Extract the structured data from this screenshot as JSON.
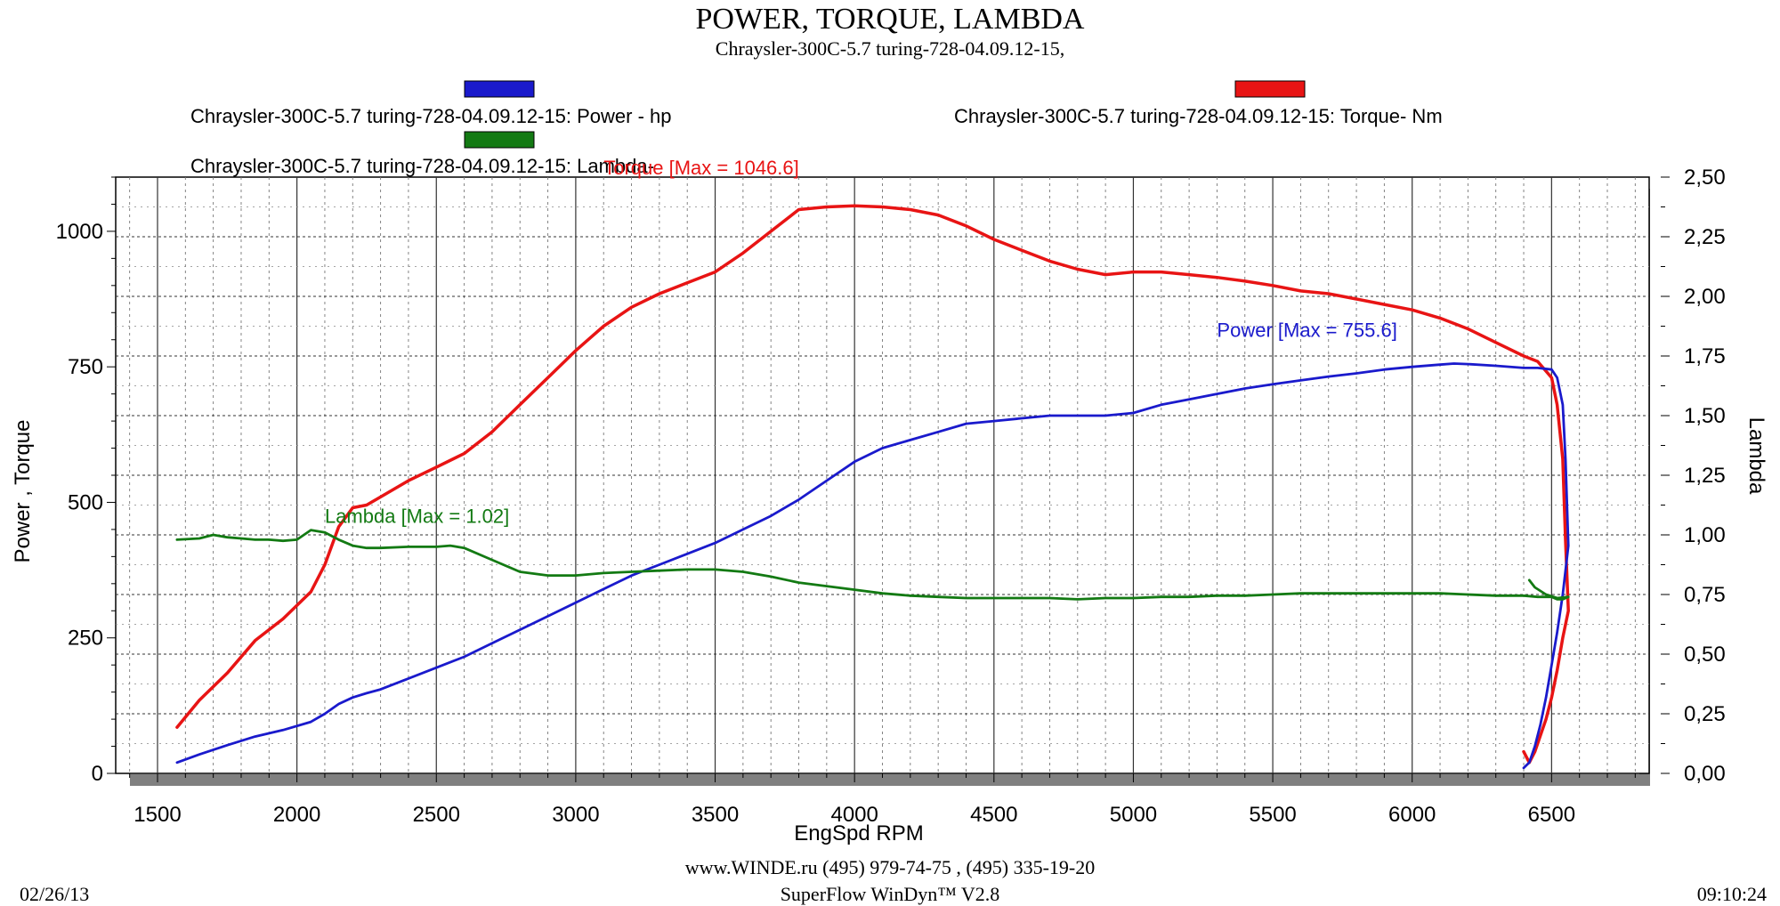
{
  "header": {
    "title": "POWER, TORQUE, LAMBDA",
    "subtitle": "Chraysler-300C-5.7 turing-728-04.09.12-15,"
  },
  "legend": {
    "power": "Chraysler-300C-5.7 turing-728-04.09.12-15: Power -  hp",
    "torque": "Chraysler-300C-5.7 turing-728-04.09.12-15: Torque-  Nm",
    "lambda": "Chraysler-300C-5.7 turing-728-04.09.12-15: Lambda-"
  },
  "footer": {
    "website": "www.WINDE.ru  (495) 979-74-75 , (495) 335-19-20",
    "software": "SuperFlow WinDyn™ V2.8",
    "date": "02/26/13",
    "time": "09:10:24"
  },
  "colors": {
    "power": "#1a1acc",
    "torque": "#e81414",
    "lambda": "#137a13",
    "shadow": "#808080"
  },
  "chart_data": {
    "type": "line",
    "title": "POWER, TORQUE, LAMBDA",
    "xlabel": "EngSpd  RPM",
    "ylabel": "Power , Torque",
    "y2label": "Lambda",
    "xlim": [
      1350,
      6850
    ],
    "ylim": [
      0,
      1100
    ],
    "y2lim": [
      0,
      2.5
    ],
    "x_ticks": [
      1500,
      2000,
      2500,
      3000,
      3500,
      4000,
      4500,
      5000,
      5500,
      6000,
      6500
    ],
    "y_ticks": [
      0,
      250,
      500,
      750,
      1000
    ],
    "y2_ticks": [
      "0,00",
      "0,25",
      "0,50",
      "0,75",
      "1,00",
      "1,25",
      "1,50",
      "1,75",
      "2,00",
      "2,25",
      "2,50"
    ],
    "grid": true,
    "series": [
      {
        "name": "Torque",
        "axis": "left",
        "annotation": "Torque [Max = 1046.6]",
        "x": [
          1570,
          1650,
          1750,
          1850,
          1950,
          2050,
          2100,
          2150,
          2200,
          2250,
          2300,
          2400,
          2500,
          2600,
          2700,
          2800,
          2900,
          3000,
          3100,
          3200,
          3300,
          3400,
          3500,
          3600,
          3700,
          3800,
          3900,
          4000,
          4050,
          4100,
          4200,
          4300,
          4400,
          4500,
          4600,
          4700,
          4800,
          4900,
          5000,
          5100,
          5200,
          5300,
          5400,
          5500,
          5600,
          5700,
          5800,
          5900,
          6000,
          6100,
          6200,
          6300,
          6400,
          6450,
          6500,
          6520,
          6540,
          6550,
          6560,
          6540,
          6520,
          6500,
          6480,
          6460,
          6440,
          6420,
          6400
        ],
        "y": [
          85,
          135,
          185,
          245,
          285,
          335,
          385,
          455,
          490,
          495,
          510,
          540,
          565,
          590,
          630,
          680,
          730,
          780,
          825,
          860,
          885,
          905,
          925,
          960,
          1000,
          1040,
          1045,
          1047,
          1046,
          1045,
          1040,
          1030,
          1010,
          985,
          965,
          945,
          930,
          920,
          925,
          925,
          920,
          915,
          908,
          900,
          890,
          885,
          875,
          865,
          855,
          840,
          820,
          795,
          770,
          760,
          730,
          680,
          580,
          430,
          300,
          250,
          190,
          140,
          100,
          70,
          40,
          20,
          40
        ]
      },
      {
        "name": "Power",
        "axis": "left",
        "annotation": "Power  [Max = 755.6]",
        "x": [
          1570,
          1650,
          1750,
          1850,
          1950,
          2050,
          2100,
          2150,
          2200,
          2250,
          2300,
          2400,
          2500,
          2600,
          2700,
          2800,
          2900,
          3000,
          3100,
          3200,
          3300,
          3400,
          3500,
          3600,
          3700,
          3800,
          3900,
          4000,
          4100,
          4200,
          4300,
          4400,
          4500,
          4600,
          4700,
          4800,
          4900,
          5000,
          5100,
          5200,
          5300,
          5400,
          5500,
          5600,
          5700,
          5800,
          5900,
          6000,
          6100,
          6150,
          6200,
          6300,
          6400,
          6450,
          6500,
          6520,
          6540,
          6550,
          6560,
          6540,
          6520,
          6500,
          6480,
          6460,
          6440,
          6420,
          6400
        ],
        "y": [
          20,
          35,
          52,
          68,
          80,
          95,
          110,
          128,
          140,
          148,
          155,
          175,
          195,
          215,
          240,
          265,
          290,
          315,
          340,
          365,
          385,
          405,
          425,
          450,
          475,
          505,
          540,
          575,
          600,
          615,
          630,
          645,
          650,
          655,
          660,
          660,
          660,
          665,
          680,
          690,
          700,
          710,
          718,
          725,
          732,
          738,
          745,
          750,
          754,
          756,
          755,
          752,
          748,
          748,
          745,
          730,
          680,
          580,
          420,
          330,
          260,
          200,
          140,
          90,
          50,
          20,
          10
        ]
      },
      {
        "name": "Lambda",
        "axis": "right",
        "annotation": "Lambda [Max = 1.02]",
        "x": [
          1570,
          1650,
          1700,
          1750,
          1800,
          1850,
          1900,
          1950,
          2000,
          2050,
          2100,
          2150,
          2200,
          2250,
          2300,
          2400,
          2500,
          2550,
          2600,
          2700,
          2800,
          2900,
          3000,
          3100,
          3200,
          3300,
          3400,
          3500,
          3600,
          3700,
          3800,
          3900,
          4000,
          4100,
          4200,
          4300,
          4400,
          4500,
          4600,
          4700,
          4800,
          4900,
          5000,
          5100,
          5200,
          5300,
          5400,
          5500,
          5600,
          5700,
          5800,
          5900,
          6000,
          6100,
          6200,
          6300,
          6400,
          6450,
          6500,
          6520,
          6540,
          6560,
          6520,
          6480,
          6440,
          6420
        ],
        "y": [
          0.98,
          0.985,
          1.0,
          0.99,
          0.985,
          0.98,
          0.98,
          0.975,
          0.98,
          1.02,
          1.01,
          0.98,
          0.955,
          0.945,
          0.945,
          0.95,
          0.95,
          0.955,
          0.945,
          0.895,
          0.845,
          0.83,
          0.83,
          0.84,
          0.845,
          0.85,
          0.855,
          0.855,
          0.845,
          0.825,
          0.8,
          0.785,
          0.77,
          0.755,
          0.745,
          0.74,
          0.735,
          0.735,
          0.735,
          0.735,
          0.73,
          0.735,
          0.735,
          0.74,
          0.74,
          0.745,
          0.745,
          0.75,
          0.755,
          0.755,
          0.755,
          0.755,
          0.755,
          0.755,
          0.75,
          0.745,
          0.745,
          0.74,
          0.74,
          0.73,
          0.73,
          0.74,
          0.735,
          0.75,
          0.78,
          0.81
        ]
      }
    ]
  }
}
